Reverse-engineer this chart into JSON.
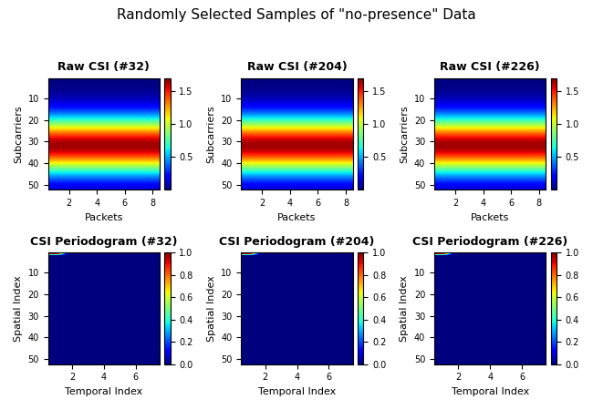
{
  "suptitle": "Randomly Selected Samples of \"no-presence\" Data",
  "raw_titles": [
    "Raw CSI (#32)",
    "Raw CSI (#204)",
    "Raw CSI (#226)"
  ],
  "raw_xlabel": "Packets",
  "raw_ylabel": "Subcarriers",
  "perio_titles": [
    "CSI Periodogram (#32)",
    "CSI Periodogram (#204)",
    "CSI Periodogram (#226)"
  ],
  "perio_xlabel": "Temporal Index",
  "perio_ylabel": "Spatial Index",
  "n_subcarriers": 52,
  "n_packets": 9,
  "n_spatial": 52,
  "n_temporal": 8,
  "raw_clim": [
    0.0,
    1.7
  ],
  "perio_clim": [
    0,
    1
  ],
  "cmap_raw": "jet",
  "cmap_perio": "jet",
  "raw_cbar_ticks": [
    0.5,
    1.0,
    1.5
  ],
  "perio_cbar_ticks": [
    0.0,
    0.2,
    0.4,
    0.6,
    0.8,
    1.0
  ],
  "raw_xticks": [
    2,
    4,
    6,
    8
  ],
  "raw_yticks": [
    10,
    20,
    30,
    40,
    50
  ],
  "perio_xticks": [
    2,
    4,
    6
  ],
  "perio_yticks": [
    10,
    20,
    30,
    40,
    50
  ],
  "suptitle_fontsize": 11,
  "title_fontsize": 9,
  "label_fontsize": 8,
  "tick_fontsize": 7,
  "cbar_fontsize": 7,
  "figsize": [
    6.5,
    4.5
  ],
  "dpi": 100
}
